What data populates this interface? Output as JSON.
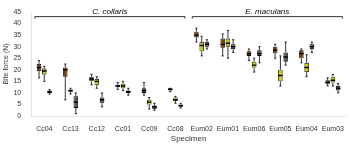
{
  "chart_data": {
    "type": "box",
    "xlabel": "Specimen",
    "ylabel": "Bite force (N)",
    "categories": [
      "Cc04",
      "Cc13",
      "Cc12",
      "Cc01",
      "Cc09",
      "Cc08",
      "Eum02",
      "Eum01",
      "Eum06",
      "Eum05",
      "Eum04",
      "Eum03"
    ],
    "series": [
      {
        "color": "#7B3F00",
        "values": [
          {
            "whislo": 16.5,
            "q1": 19.5,
            "med": 21,
            "q3": 22.5,
            "whishi": 24
          },
          {
            "whislo": 7,
            "q1": 17,
            "med": 20,
            "q3": 21,
            "whishi": 22.5
          },
          {
            "whislo": 13.5,
            "q1": 15,
            "med": 16,
            "q3": 17,
            "whishi": 18
          },
          {
            "whislo": 11.5,
            "q1": 12.5,
            "med": 13,
            "q3": 13.5,
            "whishi": 14.5
          },
          {
            "whislo": 9,
            "q1": 10,
            "med": 11,
            "q3": 12,
            "whishi": 14.5
          },
          {
            "whislo": 10.5,
            "q1": 11,
            "med": 11.5,
            "q3": 12,
            "whishi": 12
          },
          {
            "whislo": 32,
            "q1": 34,
            "med": 35,
            "q3": 36.5,
            "whishi": 38
          },
          {
            "whislo": 26,
            "q1": 29.5,
            "med": 31,
            "q3": 33.5,
            "whishi": 35.5
          },
          {
            "whislo": 24,
            "q1": 26,
            "med": 27,
            "q3": 28,
            "whishi": 29
          },
          {
            "whislo": 25,
            "q1": 27,
            "med": 28.5,
            "q3": 30,
            "whishi": 31
          },
          {
            "whislo": 23,
            "q1": 25,
            "med": 27,
            "q3": 28.5,
            "whishi": 29
          },
          {
            "whislo": 13,
            "q1": 14,
            "med": 14.5,
            "q3": 15.5,
            "whishi": 16.5
          }
        ]
      },
      {
        "color": "#CCCC00",
        "values": [
          {
            "whislo": 15,
            "q1": 18,
            "med": 19.5,
            "q3": 20.5,
            "whishi": 21.5
          },
          {
            "whislo": 9.5,
            "q1": 10.5,
            "med": 11,
            "q3": 11.5,
            "whishi": 12
          },
          {
            "whislo": 12,
            "q1": 13.5,
            "med": 15,
            "q3": 16,
            "whishi": 17
          },
          {
            "whislo": 11,
            "q1": 12,
            "med": 13,
            "q3": 14,
            "whishi": 15
          },
          {
            "whislo": 3,
            "q1": 5,
            "med": 6,
            "q3": 7,
            "whishi": 8
          },
          {
            "whislo": 5.5,
            "q1": 6.5,
            "med": 7,
            "q3": 8,
            "whishi": 8.5
          },
          {
            "whislo": 26,
            "q1": 28,
            "med": 30.5,
            "q3": 32,
            "whishi": 34.5
          },
          {
            "whislo": 25,
            "q1": 30,
            "med": 31.5,
            "q3": 33.5,
            "whishi": 37
          },
          {
            "whislo": 19,
            "q1": 21,
            "med": 22,
            "q3": 23.5,
            "whishi": 25
          },
          {
            "whislo": 13,
            "q1": 15,
            "med": 17.5,
            "q3": 20,
            "whishi": 26
          },
          {
            "whislo": 17,
            "q1": 19,
            "med": 21,
            "q3": 23,
            "whishi": 26.5
          },
          {
            "whislo": 13,
            "q1": 14.5,
            "med": 15.5,
            "q3": 17,
            "whishi": 18
          }
        ]
      },
      {
        "color": "#555555",
        "values": [
          {
            "whislo": 9.5,
            "q1": 10,
            "med": 10.5,
            "q3": 11,
            "whishi": 11.5
          },
          {
            "whislo": 1,
            "q1": 3.5,
            "med": 6,
            "q3": 8.5,
            "whishi": 10
          },
          {
            "whislo": 4,
            "q1": 5.5,
            "med": 7,
            "q3": 8,
            "whishi": 10
          },
          {
            "whislo": 9,
            "q1": 10,
            "med": 10.5,
            "q3": 11,
            "whishi": 12
          },
          {
            "whislo": 2.5,
            "q1": 3,
            "med": 4,
            "q3": 4.5,
            "whishi": 5.5
          },
          {
            "whislo": 3.5,
            "q1": 4,
            "med": 4.5,
            "q3": 5,
            "whishi": 5.5
          },
          {
            "whislo": 29,
            "q1": 30,
            "med": 31,
            "q3": 32,
            "whishi": 33
          },
          {
            "whislo": 27.5,
            "q1": 29,
            "med": 30,
            "q3": 31,
            "whishi": 33
          },
          {
            "whislo": 23,
            "q1": 26,
            "med": 27,
            "q3": 28.5,
            "whishi": 30
          },
          {
            "whislo": 22,
            "q1": 23.5,
            "med": 25.5,
            "q3": 27.5,
            "whishi": 32
          },
          {
            "whislo": 27.5,
            "q1": 29,
            "med": 30,
            "q3": 31,
            "whishi": 32
          },
          {
            "whislo": 10,
            "q1": 11,
            "med": 12,
            "q3": 13,
            "whishi": 14
          }
        ]
      }
    ],
    "annotations": [
      {
        "text": "C. collaris",
        "from": "Cc04",
        "to": "Cc08",
        "y": 43
      },
      {
        "text": "E. maculans",
        "from": "Eum02",
        "to": "Eum03",
        "y": 43
      }
    ],
    "ylim": [
      0,
      45
    ],
    "yticks": [
      0,
      5,
      10,
      15,
      20,
      25,
      30,
      35,
      40,
      45
    ],
    "grid": false
  }
}
